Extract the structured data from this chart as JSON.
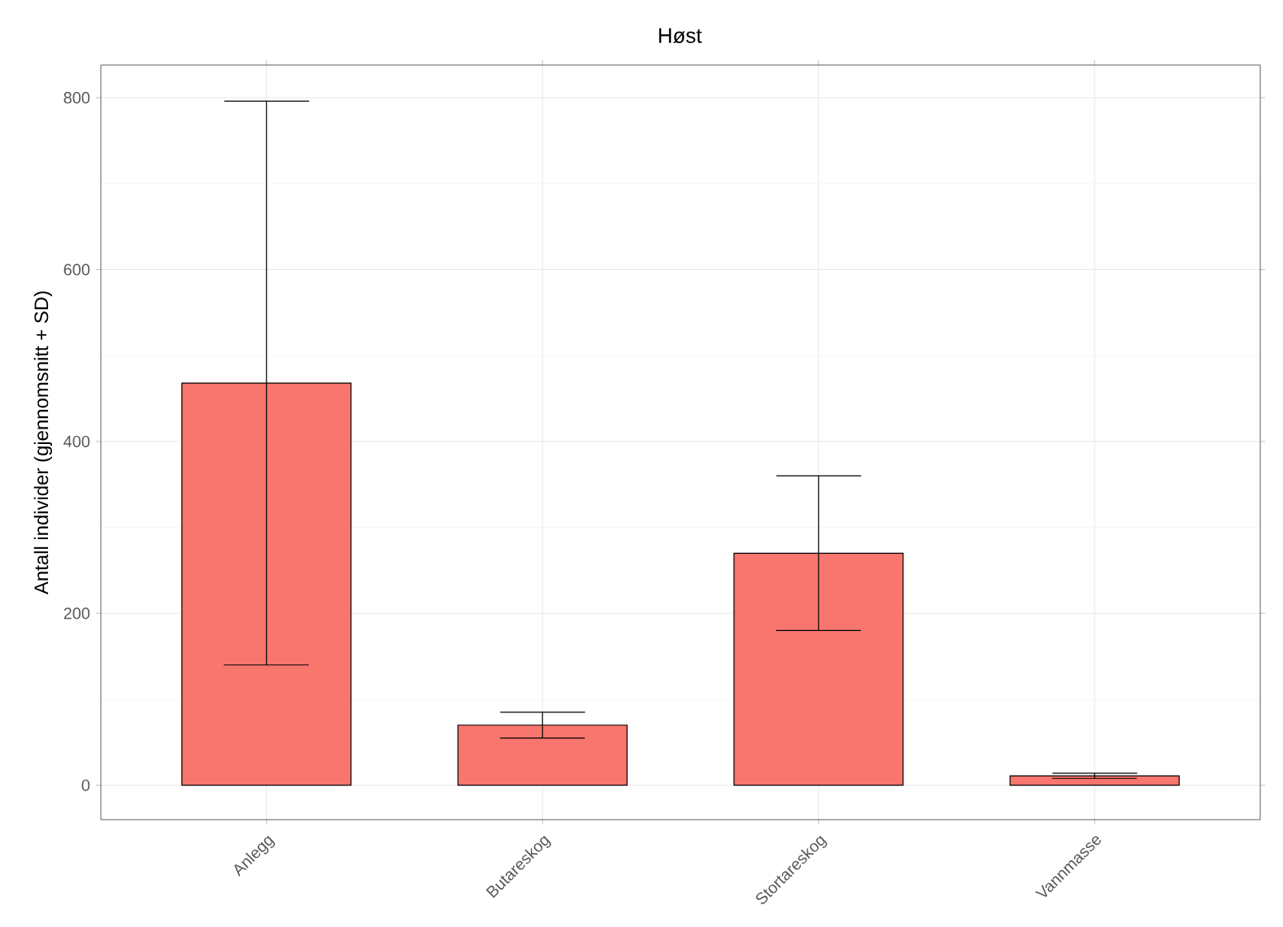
{
  "chart_data": {
    "type": "bar",
    "title": "Høst",
    "ylabel": "Antall individer (gjennomsnitt + SD)",
    "categories": [
      "Anlegg",
      "Butareskog",
      "Stortareskog",
      "Vannmasse"
    ],
    "values": [
      468,
      70,
      270,
      11
    ],
    "errors": [
      328,
      15,
      90,
      3
    ],
    "color": "#f8766d",
    "ylim": [
      -40,
      838
    ],
    "yticks": [
      0,
      200,
      400,
      600,
      800
    ],
    "grid": true
  }
}
